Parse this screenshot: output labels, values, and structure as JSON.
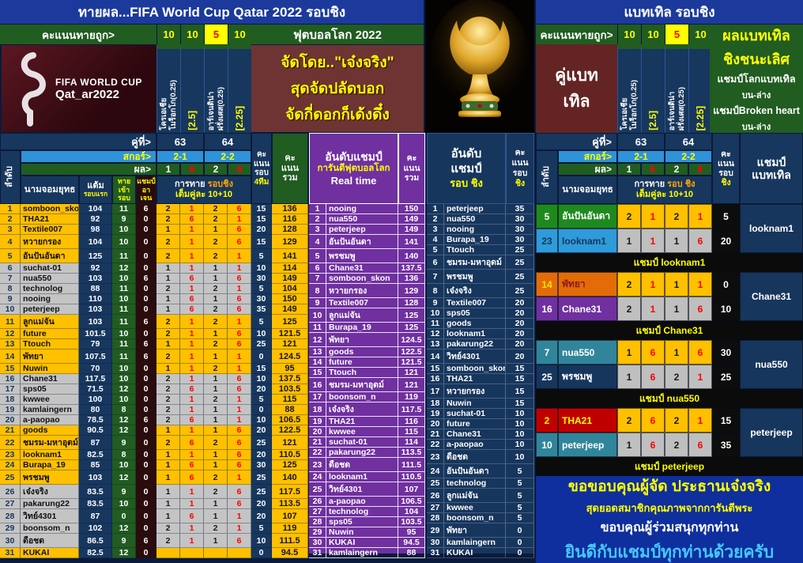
{
  "colors": {
    "gold": "#FFC000",
    "gray": "#C4C4C4",
    "navy": "#17375E",
    "green": "#215C21",
    "purple": "#7030A0",
    "red_text": "#FF0000",
    "yellow_text": "#FFFF00",
    "title_blue": "#1C3A9C"
  },
  "left": {
    "title": "ทายผล...FIFA World Cup Qatar 2022 รอบชิง",
    "scorebar": {
      "label": "คะแนนทายถูก>",
      "points": [
        "10",
        "10",
        "5",
        "10"
      ],
      "hot_index": 2
    },
    "worldcup_bar": "ฟุตบอลโลก 2022",
    "logo": {
      "line1": "FIFA WORLD CUP",
      "line2": "Qat_ar2022"
    },
    "match_columns": [
      {
        "lines": "โครเอเชีย\nโมร็อกโก(0.25)",
        "kind": "team"
      },
      {
        "lines": "[2.5]",
        "kind": "handicap"
      },
      {
        "lines": "อาร์เจนติน่า\nฝรั่งเศส(0.25)",
        "kind": "team"
      },
      {
        "lines": "[2.25]",
        "kind": "handicap"
      }
    ],
    "promo_lines": [
      "จัดโดย..\"เจ๋งจริง\"",
      "สุดจัดปลัดบอก",
      "จัดกี่ดอกก็เด้งดึ๋ง"
    ],
    "header": {
      "pair_label": "คู่ที่>",
      "pairs": [
        "63",
        "64"
      ],
      "score_label": "สกอร์>",
      "scores": [
        "2-1",
        "2-2"
      ],
      "result_label": "ผล>",
      "results": [
        "1",
        "6",
        "2",
        "6"
      ],
      "rank": "ลำดับ",
      "name": "นามจอมยุทธ",
      "points1": "แต้ม",
      "points2": "รอบแรก",
      "qualify": [
        "ทาย",
        "เข้า",
        "รอบ"
      ],
      "champ": [
        "แชมป์",
        "อา",
        "เจน"
      ],
      "predict_w": "การทาย",
      "predict_o": "รอบชิง",
      "predict_y": "เต็มคู่ละ 10+10",
      "round": [
        "คะ",
        "แนน",
        "รอบ",
        "4ทีม"
      ],
      "total": [
        "คะ",
        "แนน",
        "รวม"
      ]
    },
    "rows": [
      [
        "1",
        "somboon_skon",
        "104",
        "11",
        "6",
        "2",
        "1",
        "2",
        "6",
        "15",
        "136"
      ],
      [
        "2",
        "THA21",
        "92",
        "9",
        "0",
        "2",
        "6",
        "2",
        "1",
        "15",
        "116"
      ],
      [
        "3",
        "Textile007",
        "98",
        "10",
        "0",
        "1",
        "1",
        "1",
        "6",
        "20",
        "128"
      ],
      [
        "4",
        "หวายกรอง",
        "104",
        "10",
        "0",
        "2",
        "1",
        "2",
        "6",
        "15",
        "129"
      ],
      [
        "5",
        "อันปันอันดา",
        "125",
        "11",
        "0",
        "2",
        "1",
        "2",
        "1",
        "5",
        "141"
      ],
      [
        "6",
        "suchat-01",
        "92",
        "12",
        "0",
        "1",
        "1",
        "1",
        "1",
        "10",
        "114"
      ],
      [
        "7",
        "nua550",
        "103",
        "10",
        "6",
        "1",
        "6",
        "1",
        "6",
        "30",
        "149"
      ],
      [
        "8",
        "technolog",
        "88",
        "11",
        "0",
        "2",
        "1",
        "2",
        "1",
        "5",
        "104"
      ],
      [
        "9",
        "nooing",
        "110",
        "10",
        "0",
        "1",
        "6",
        "1",
        "6",
        "30",
        "150"
      ],
      [
        "10",
        "peterjeep",
        "103",
        "11",
        "0",
        "1",
        "6",
        "2",
        "6",
        "35",
        "149"
      ],
      [
        "11",
        "ลูกแม่จัน",
        "103",
        "11",
        "6",
        "2",
        "1",
        "2",
        "1",
        "5",
        "125"
      ],
      [
        "12",
        "future",
        "101.5",
        "10",
        "0",
        "2",
        "1",
        "1",
        "6",
        "10",
        "121.5"
      ],
      [
        "13",
        "Ttouch",
        "79",
        "11",
        "6",
        "1",
        "1",
        "2",
        "6",
        "25",
        "121"
      ],
      [
        "14",
        "พัทยา",
        "107.5",
        "11",
        "6",
        "2",
        "1",
        "1",
        "1",
        "0",
        "124.5"
      ],
      [
        "15",
        "Nuwin",
        "70",
        "10",
        "0",
        "1",
        "1",
        "2",
        "1",
        "15",
        "95"
      ],
      [
        "16",
        "Chane31",
        "117.5",
        "10",
        "0",
        "2",
        "1",
        "1",
        "6",
        "10",
        "137.5"
      ],
      [
        "17",
        "sps05",
        "71.5",
        "12",
        "0",
        "2",
        "6",
        "1",
        "6",
        "20",
        "103.5"
      ],
      [
        "18",
        "kwwee",
        "100",
        "10",
        "0",
        "2",
        "1",
        "2",
        "1",
        "5",
        "115"
      ],
      [
        "19",
        "kamlaingern",
        "80",
        "8",
        "0",
        "2",
        "1",
        "1",
        "1",
        "0",
        "88"
      ],
      [
        "20",
        "a-paopao",
        "78.5",
        "12",
        "6",
        "2",
        "6",
        "1",
        "1",
        "10",
        "106.5"
      ],
      [
        "21",
        "goods",
        "90.5",
        "12",
        "0",
        "1",
        "1",
        "1",
        "6",
        "20",
        "122.5"
      ],
      [
        "22",
        "ชมรม-มหาอุดม์",
        "87",
        "9",
        "0",
        "2",
        "6",
        "2",
        "6",
        "25",
        "121"
      ],
      [
        "23",
        "looknam1",
        "82.5",
        "8",
        "0",
        "1",
        "1",
        "1",
        "6",
        "20",
        "110.5"
      ],
      [
        "24",
        "Burapa_19",
        "85",
        "10",
        "0",
        "1",
        "6",
        "1",
        "6",
        "30",
        "125"
      ],
      [
        "25",
        "พรชมพู",
        "103",
        "12",
        "0",
        "1",
        "6",
        "2",
        "1",
        "25",
        "140"
      ],
      [
        "26",
        "เจ๋งจริง",
        "83.5",
        "9",
        "0",
        "1",
        "1",
        "2",
        "6",
        "25",
        "117.5"
      ],
      [
        "27",
        "pakarung22",
        "83.5",
        "10",
        "0",
        "1",
        "1",
        "1",
        "6",
        "20",
        "113.5"
      ],
      [
        "28",
        "วิทย์4301",
        "87",
        "0",
        "0",
        "1",
        "6",
        "1",
        "1",
        "20",
        "107"
      ],
      [
        "29",
        "boonsom_n",
        "102",
        "12",
        "0",
        "2",
        "1",
        "2",
        "1",
        "5",
        "119"
      ],
      [
        "30",
        "ดือชด",
        "86.5",
        "9",
        "6",
        "2",
        "1",
        "1",
        "6",
        "10",
        "111.5"
      ],
      [
        "31",
        "KUKAI",
        "82.5",
        "12",
        "0",
        "",
        "",
        "",
        "",
        "0",
        "94.5"
      ]
    ]
  },
  "realtime": {
    "title1": "อันดับแชมป์",
    "title2": "การันตีฟุตบอลโลก",
    "title3": "Real time",
    "score_col": [
      "คะ",
      "แนน",
      "รวม"
    ],
    "rows": [
      [
        "1",
        "nooing",
        "150"
      ],
      [
        "2",
        "nua550",
        "149"
      ],
      [
        "3",
        "peterjeep",
        "149"
      ],
      [
        "4",
        "อันปันอันดา",
        "141"
      ],
      [
        "5",
        "พรชมพู",
        "140"
      ],
      [
        "6",
        "Chane31",
        "137.5"
      ],
      [
        "7",
        "somboon_skon",
        "136"
      ],
      [
        "8",
        "หวายกรอง",
        "129"
      ],
      [
        "9",
        "Textile007",
        "128"
      ],
      [
        "10",
        "ลูกแม่จัน",
        "125"
      ],
      [
        "11",
        "Burapa_19",
        "125"
      ],
      [
        "12",
        "พัทยา",
        "124.5"
      ],
      [
        "13",
        "goods",
        "122.5"
      ],
      [
        "14",
        "future",
        "121.5"
      ],
      [
        "15",
        "Ttouch",
        "121"
      ],
      [
        "16",
        "ชมรม-มหาอุดม์",
        "121"
      ],
      [
        "17",
        "boonsom_n",
        "119"
      ],
      [
        "18",
        "เจ๋งจริง",
        "117.5"
      ],
      [
        "19",
        "THA21",
        "116"
      ],
      [
        "20",
        "kwwee",
        "115"
      ],
      [
        "21",
        "suchat-01",
        "114"
      ],
      [
        "22",
        "pakarung22",
        "113.5"
      ],
      [
        "23",
        "ดือชด",
        "111.5"
      ],
      [
        "24",
        "looknam1",
        "110.5"
      ],
      [
        "25",
        "วิทย์4301",
        "107"
      ],
      [
        "26",
        "a-paopao",
        "106.5"
      ],
      [
        "27",
        "technolog",
        "104"
      ],
      [
        "28",
        "sps05",
        "103.5"
      ],
      [
        "29",
        "Nuwin",
        "95"
      ],
      [
        "30",
        "KUKAI",
        "94.5"
      ],
      [
        "31",
        "kamlaingern",
        "88"
      ]
    ]
  },
  "final": {
    "title1": "อันดับ",
    "title2": "แชมป์",
    "title3": "รอบ ชิง",
    "score_col": [
      "คะ",
      "แนน",
      "รอบ",
      "ชิง"
    ],
    "rows": [
      [
        "1",
        "peterjeep",
        "35"
      ],
      [
        "2",
        "nua550",
        "30"
      ],
      [
        "3",
        "nooing",
        "30"
      ],
      [
        "4",
        "Burapa_19",
        "30"
      ],
      [
        "5",
        "Ttouch",
        "25"
      ],
      [
        "6",
        "ชมรม-มหาอุดม์",
        "25"
      ],
      [
        "7",
        "พรชมพู",
        "25"
      ],
      [
        "8",
        "เจ๋งจริง",
        "25"
      ],
      [
        "9",
        "Textile007",
        "20"
      ],
      [
        "10",
        "sps05",
        "20"
      ],
      [
        "11",
        "goods",
        "20"
      ],
      [
        "12",
        "looknam1",
        "20"
      ],
      [
        "13",
        "pakarung22",
        "20"
      ],
      [
        "14",
        "วิทย์4301",
        "20"
      ],
      [
        "15",
        "somboon_skon",
        "15"
      ],
      [
        "16",
        "THA21",
        "15"
      ],
      [
        "17",
        "หวายกรอง",
        "15"
      ],
      [
        "18",
        "Nuwin",
        "15"
      ],
      [
        "19",
        "suchat-01",
        "10"
      ],
      [
        "20",
        "future",
        "10"
      ],
      [
        "21",
        "Chane31",
        "10"
      ],
      [
        "22",
        "a-paopao",
        "10"
      ],
      [
        "23",
        "ดือชด",
        "10"
      ],
      [
        "24",
        "อันปันอันดา",
        "5"
      ],
      [
        "25",
        "technolog",
        "5"
      ],
      [
        "26",
        "ลูกแม่จัน",
        "5"
      ],
      [
        "27",
        "kwwee",
        "5"
      ],
      [
        "28",
        "boonsom_n",
        "5"
      ],
      [
        "29",
        "พัทยา",
        "0"
      ],
      [
        "30",
        "kamlaingern",
        "0"
      ],
      [
        "31",
        "KUKAI",
        "0"
      ]
    ]
  },
  "battle": {
    "title": "แบทเทิล รอบชิง",
    "scorebar": {
      "label": "คะแนนทายถูก>",
      "points": [
        "10",
        "10",
        "5",
        "10"
      ],
      "hot_index": 2
    },
    "pair_box": [
      "คู่แบท",
      "เทิล"
    ],
    "match_columns": [
      {
        "lines": "โครเอเชีย\nโมร็อกโก(0.25)",
        "kind": "team"
      },
      {
        "lines": "[2.5]",
        "kind": "handicap"
      },
      {
        "lines": "อาร์เจนติน่า\nฝรั่งเศส(0.25)",
        "kind": "team"
      },
      {
        "lines": "[2.25]",
        "kind": "handicap"
      }
    ],
    "result_box": {
      "big": [
        "ผลแบทเทิล",
        "ชิงชนะเลิศ"
      ],
      "small": [
        "แชมป์โลกแบทเทิล",
        "บน-ล่าง",
        "แชมป์Broken heart",
        "บน-ล่าง"
      ]
    },
    "header": {
      "pair_label": "คู่ที่>",
      "pairs": [
        "63",
        "64"
      ],
      "score_label": "สกอร์>",
      "scores": [
        "2-1",
        "2-2"
      ],
      "result_label": "ผล>",
      "results": [
        "1",
        "6",
        "2",
        "6"
      ],
      "rank": "ลำดับ",
      "name": "นามจอมยุทธ",
      "predict_w": "การทาย",
      "predict_o": "รอบ ชิง",
      "predict_y": "เต็มคู่ละ 10+10",
      "round": [
        "คะ",
        "แนน",
        "รอบ",
        "ชิง"
      ],
      "champion": [
        "แชมป์",
        "แบทเทิล"
      ]
    },
    "pairs": [
      {
        "a": {
          "rank": "5",
          "name": "อันปันอันดา",
          "style": "green",
          "preds": [
            "2",
            "1",
            "2",
            "1"
          ],
          "pts": "5"
        },
        "b": {
          "rank": "23",
          "name": "looknam1",
          "style": "lightblue",
          "preds": [
            "1",
            "1",
            "1",
            "6"
          ],
          "pts": "20"
        },
        "champion": "looknam1",
        "separator": "แชมป์ looknam1"
      },
      {
        "a": {
          "rank": "14",
          "name": "พัทยา",
          "style": "orange",
          "preds": [
            "2",
            "1",
            "1",
            "1"
          ],
          "pts": "0"
        },
        "b": {
          "rank": "16",
          "name": "Chane31",
          "style": "purple",
          "preds": [
            "2",
            "1",
            "1",
            "6"
          ],
          "pts": "10"
        },
        "champion": "Chane31",
        "separator": "แชมป์ Chane31"
      },
      {
        "a": {
          "rank": "7",
          "name": "nua550",
          "style": "teal",
          "preds": [
            "1",
            "6",
            "1",
            "6"
          ],
          "pts": "30"
        },
        "b": {
          "rank": "25",
          "name": "พรชมพู",
          "style": "navy",
          "preds": [
            "1",
            "6",
            "2",
            "1"
          ],
          "pts": "25"
        },
        "champion": "nua550",
        "separator": "แชมป์ nua550"
      },
      {
        "a": {
          "rank": "2",
          "name": "THA21",
          "style": "red",
          "preds": [
            "2",
            "6",
            "2",
            "1"
          ],
          "pts": "15"
        },
        "b": {
          "rank": "10",
          "name": "peterjeep",
          "style": "teal",
          "preds": [
            "1",
            "6",
            "2",
            "6"
          ],
          "pts": "35"
        },
        "champion": "peterjeep",
        "separator": "แชมป์ peterjeep"
      }
    ],
    "footer": [
      "ขอขอบคุณผู้จัด  ประธานเจ๋งจริง",
      "สุดยอดสมาชิกคุณภาพจากการันตีพระ",
      "ขอบคุณผู้ร่วมสนุกทุกท่าน",
      "ยินดีกับแชมป์ทุกท่านด้วยครับ"
    ]
  }
}
